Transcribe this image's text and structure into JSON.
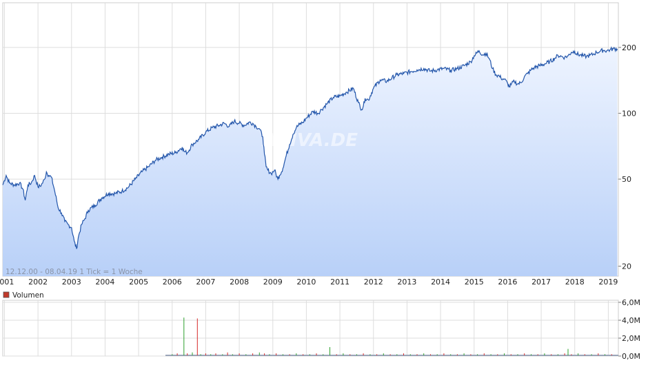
{
  "chart_data": [
    {
      "type": "area",
      "title": "",
      "info_label": "12.12.00 - 08.04.19   1 Tick = 1 Woche",
      "watermark": "ARIVA.DE",
      "y_scale": "log",
      "ylim": [
        18,
        320
      ],
      "y_ticks": [
        {
          "value": 20,
          "label": "20"
        },
        {
          "value": 50,
          "label": "50"
        },
        {
          "value": 100,
          "label": "100"
        },
        {
          "value": 200,
          "label": "200"
        }
      ],
      "xlim": [
        2000.95,
        2019.3
      ],
      "x_ticks": [
        {
          "value": 2001,
          "label": "2001"
        },
        {
          "value": 2002,
          "label": "2002"
        },
        {
          "value": 2003,
          "label": "2003"
        },
        {
          "value": 2004,
          "label": "2004"
        },
        {
          "value": 2005,
          "label": "2005"
        },
        {
          "value": 2006,
          "label": "2006"
        },
        {
          "value": 2007,
          "label": "2007"
        },
        {
          "value": 2008,
          "label": "2008"
        },
        {
          "value": 2009,
          "label": "2009"
        },
        {
          "value": 2010,
          "label": "2010"
        },
        {
          "value": 2011,
          "label": "2011"
        },
        {
          "value": 2012,
          "label": "2012"
        },
        {
          "value": 2013,
          "label": "2013"
        },
        {
          "value": 2014,
          "label": "2014"
        },
        {
          "value": 2015,
          "label": "2015"
        },
        {
          "value": 2016,
          "label": "2016"
        },
        {
          "value": 2017,
          "label": "2017"
        },
        {
          "value": 2018,
          "label": "2018"
        },
        {
          "value": 2019,
          "label": "2019"
        }
      ],
      "grid": true,
      "line_color": "#2255aa",
      "fill_top_color": "#eef4ff",
      "fill_bottom_color": "#b8d0f8",
      "series": [
        {
          "x": [
            2000.95,
            2001.05,
            2001.15,
            2001.3,
            2001.45,
            2001.55,
            2001.62,
            2001.7,
            2001.8,
            2001.9,
            2002.0,
            2002.1,
            2002.2,
            2002.25,
            2002.32,
            2002.4,
            2002.5,
            2002.6,
            2002.7,
            2002.8,
            2002.9,
            2003.0,
            2003.08,
            2003.15,
            2003.2,
            2003.3,
            2003.4,
            2003.5,
            2003.7,
            2003.9,
            2004.1,
            2004.3,
            2004.5,
            2004.7,
            2004.9,
            2005.1,
            2005.3,
            2005.5,
            2005.7,
            2005.9,
            2006.1,
            2006.3,
            2006.35,
            2006.45,
            2006.6,
            2006.8,
            2007.0,
            2007.2,
            2007.4,
            2007.55,
            2007.7,
            2007.85,
            2008.0,
            2008.15,
            2008.3,
            2008.4,
            2008.5,
            2008.6,
            2008.7,
            2008.75,
            2008.8,
            2008.85,
            2008.95,
            2009.05,
            2009.15,
            2009.2,
            2009.3,
            2009.4,
            2009.5,
            2009.6,
            2009.7,
            2009.8,
            2009.9,
            2010.0,
            2010.2,
            2010.35,
            2010.45,
            2010.6,
            2010.8,
            2011.0,
            2011.2,
            2011.4,
            2011.55,
            2011.65,
            2011.7,
            2011.75,
            2011.85,
            2012.0,
            2012.2,
            2012.4,
            2012.55,
            2012.7,
            2012.9,
            2013.1,
            2013.3,
            2013.5,
            2013.7,
            2013.9,
            2014.1,
            2014.3,
            2014.5,
            2014.7,
            2014.9,
            2015.0,
            2015.15,
            2015.25,
            2015.35,
            2015.45,
            2015.55,
            2015.65,
            2015.75,
            2015.8,
            2015.9,
            2016.0,
            2016.05,
            2016.1,
            2016.2,
            2016.3,
            2016.4,
            2016.5,
            2016.6,
            2016.7,
            2016.8,
            2016.95,
            2017.1,
            2017.25,
            2017.4,
            2017.5,
            2017.6,
            2017.7,
            2017.8,
            2017.9,
            2018.0,
            2018.05,
            2018.15,
            2018.25,
            2018.35,
            2018.45,
            2018.55,
            2018.65,
            2018.75,
            2018.85,
            2018.95,
            2019.05,
            2019.15,
            2019.27
          ],
          "y": [
            47,
            52,
            48,
            47,
            48,
            45,
            40,
            47,
            48,
            52,
            46,
            47,
            50,
            54,
            52,
            51,
            44,
            37,
            35,
            32,
            31,
            30,
            26,
            24,
            27,
            31,
            33,
            36,
            38,
            41,
            43,
            43,
            44,
            46,
            50,
            54,
            57,
            61,
            63,
            65,
            66,
            70,
            67,
            66,
            72,
            76,
            82,
            86,
            88,
            90,
            87,
            92,
            90,
            88,
            91,
            90,
            87,
            85,
            78,
            65,
            57,
            55,
            53,
            55,
            50,
            52,
            56,
            64,
            72,
            80,
            86,
            89,
            91,
            95,
            102,
            100,
            104,
            110,
            118,
            120,
            125,
            130,
            112,
            104,
            108,
            117,
            115,
            130,
            142,
            140,
            145,
            150,
            152,
            155,
            158,
            160,
            156,
            158,
            160,
            157,
            160,
            165,
            172,
            183,
            193,
            185,
            188,
            178,
            160,
            150,
            148,
            145,
            143,
            137,
            132,
            135,
            140,
            136,
            138,
            147,
            152,
            158,
            162,
            165,
            168,
            172,
            178,
            184,
            182,
            180,
            183,
            190,
            192,
            187,
            185,
            183,
            182,
            184,
            186,
            190,
            192,
            194,
            193,
            195,
            197,
            197
          ]
        }
      ]
    },
    {
      "type": "bar",
      "title": "",
      "legend_label": "Volumen",
      "legend_color": "#c0392b",
      "ylim": [
        0,
        6
      ],
      "y_ticks": [
        {
          "value": 0,
          "label": "0,0M"
        },
        {
          "value": 2,
          "label": "2,0M"
        },
        {
          "value": 4,
          "label": "4,0M"
        },
        {
          "value": 6,
          "label": "6,0M"
        }
      ],
      "up_color": "#2ca02c",
      "down_color": "#d62728",
      "series": [
        {
          "name": "Volumen",
          "x": [
            2006.0,
            2006.15,
            2006.35,
            2006.45,
            2006.6,
            2006.75,
            2006.85,
            2007.0,
            2007.15,
            2007.3,
            2007.5,
            2007.65,
            2007.8,
            2008.0,
            2008.2,
            2008.4,
            2008.6,
            2008.75,
            2008.9,
            2009.1,
            2009.3,
            2009.5,
            2009.7,
            2009.9,
            2010.1,
            2010.3,
            2010.5,
            2010.7,
            2010.9,
            2011.1,
            2011.3,
            2011.5,
            2011.7,
            2011.9,
            2012.1,
            2012.3,
            2012.5,
            2012.7,
            2012.9,
            2013.1,
            2013.3,
            2013.5,
            2013.7,
            2013.9,
            2014.1,
            2014.3,
            2014.5,
            2014.7,
            2014.9,
            2015.1,
            2015.3,
            2015.5,
            2015.7,
            2015.9,
            2016.1,
            2016.3,
            2016.5,
            2016.7,
            2016.9,
            2017.1,
            2017.3,
            2017.5,
            2017.7,
            2017.8,
            2017.9,
            2018.1,
            2018.3,
            2018.5,
            2018.7,
            2018.9,
            2019.1
          ],
          "values": [
            0.2,
            0.3,
            4.3,
            0.3,
            0.4,
            4.2,
            0.2,
            0.3,
            0.2,
            0.3,
            0.2,
            0.4,
            0.2,
            0.3,
            0.2,
            0.3,
            0.4,
            0.3,
            0.2,
            0.3,
            0.2,
            0.2,
            0.3,
            0.2,
            0.2,
            0.3,
            0.2,
            1.0,
            0.2,
            0.3,
            0.2,
            0.2,
            0.3,
            0.2,
            0.2,
            0.3,
            0.2,
            0.2,
            0.3,
            0.2,
            0.2,
            0.3,
            0.2,
            0.2,
            0.3,
            0.2,
            0.2,
            0.3,
            0.2,
            0.2,
            0.3,
            0.2,
            0.2,
            0.3,
            0.2,
            0.2,
            0.3,
            0.2,
            0.2,
            0.3,
            0.2,
            0.2,
            0.3,
            0.8,
            0.2,
            0.3,
            0.2,
            0.2,
            0.3,
            0.2,
            0.2
          ],
          "up": [
            true,
            false,
            true,
            false,
            true,
            false,
            true,
            false,
            true,
            false,
            true,
            false,
            true,
            false,
            true,
            false,
            true,
            false,
            true,
            false,
            true,
            false,
            true,
            false,
            true,
            false,
            true,
            true,
            false,
            true,
            false,
            true,
            false,
            true,
            false,
            true,
            false,
            true,
            false,
            true,
            false,
            true,
            false,
            true,
            false,
            true,
            false,
            true,
            false,
            true,
            false,
            true,
            false,
            true,
            false,
            true,
            false,
            true,
            false,
            true,
            false,
            true,
            false,
            true,
            false,
            true,
            false,
            true,
            false,
            true,
            false
          ]
        }
      ]
    }
  ]
}
